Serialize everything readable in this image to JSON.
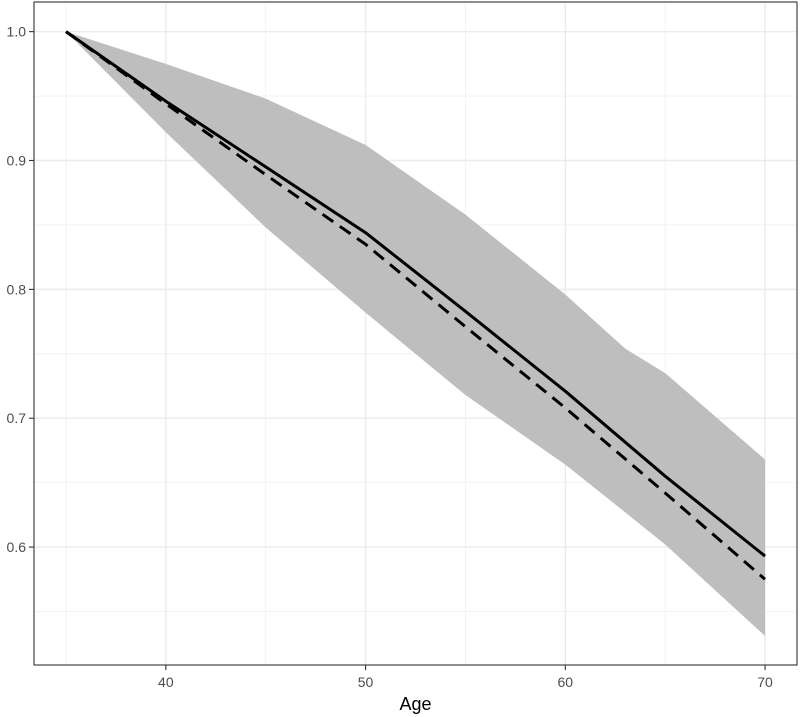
{
  "chart_data": {
    "type": "line",
    "xlabel": "Age",
    "ylabel": "",
    "title": "",
    "xlim": [
      33.4,
      71.6
    ],
    "ylim": [
      0.5085,
      1.023
    ],
    "xticks": [
      40,
      50,
      60,
      70
    ],
    "xtick_labels": [
      "40",
      "50",
      "60",
      "70"
    ],
    "yticks": [
      0.6,
      0.7,
      0.8,
      0.9,
      1.0
    ],
    "ytick_labels": [
      "0.6",
      "0.7",
      "0.8",
      "0.9",
      "1.0"
    ],
    "grid": true,
    "legend": "none",
    "band": {
      "x": [
        35,
        40,
        45,
        50,
        55,
        60,
        63,
        65,
        70
      ],
      "upper": [
        1.0,
        0.975,
        0.948,
        0.912,
        0.858,
        0.796,
        0.754,
        0.735,
        0.668
      ],
      "lower": [
        1.0,
        0.922,
        0.848,
        0.782,
        0.718,
        0.664,
        0.627,
        0.602,
        0.531
      ],
      "color": "#bebebe"
    },
    "series": [
      {
        "style": "solid",
        "color": "#000000",
        "x": [
          35,
          40,
          45,
          50,
          55,
          60,
          65,
          70
        ],
        "y": [
          1.0,
          0.946,
          0.895,
          0.844,
          0.783,
          0.721,
          0.655,
          0.593
        ]
      },
      {
        "style": "dashed",
        "color": "#000000",
        "x": [
          35,
          40,
          45,
          50,
          55,
          60,
          65,
          70
        ],
        "y": [
          1.0,
          0.944,
          0.889,
          0.835,
          0.771,
          0.708,
          0.642,
          0.575
        ]
      }
    ]
  }
}
